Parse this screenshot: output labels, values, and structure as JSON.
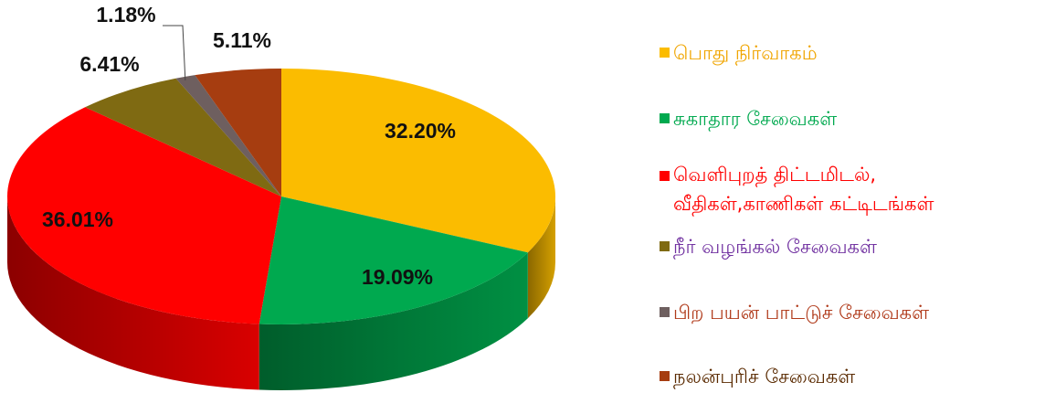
{
  "chart_data": {
    "type": "pie",
    "categories": [
      "பொது நிர்வாகம்",
      "சுகாதார சேவைகள்",
      "வெளிபுறத் திட்டமிடல்,\nவீதிகள்,காணிகள் கட்டிடங்கள்",
      "நீர் வழங்கல் சேவைகள்",
      "பிற பயன் பாட்டுச் சேவைகள்",
      "நலன்புரிச் சேவைகள்"
    ],
    "values": [
      32.2,
      19.09,
      36.01,
      6.41,
      1.18,
      5.11
    ],
    "value_labels": [
      "32.20%",
      "19.09%",
      "36.01%",
      "6.41%",
      "1.18%",
      "5.11%"
    ],
    "colors": [
      "#fbbc00",
      "#00a94f",
      "#ff0000",
      "#7f6a12",
      "#6e5f5f",
      "#a63d10"
    ],
    "legend_text_colors": [
      "#f0a500",
      "#00a94f",
      "#ff0000",
      "#7030a0",
      "#b03a1a",
      "#5a2a00"
    ]
  }
}
